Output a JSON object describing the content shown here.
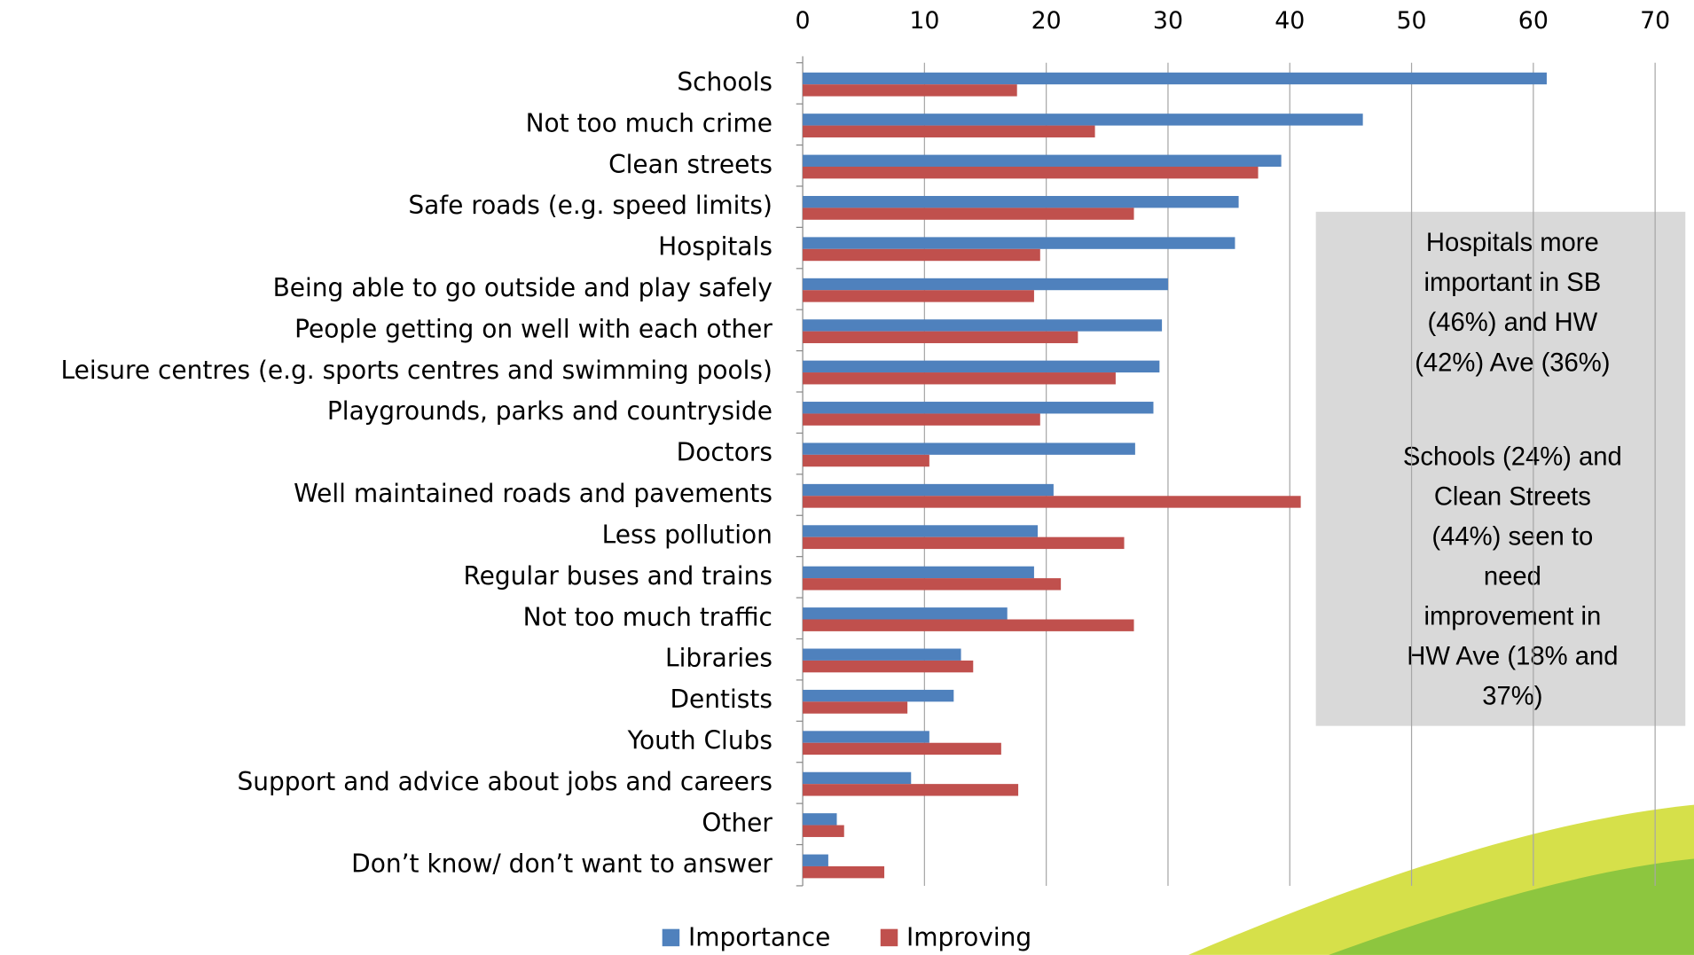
{
  "chart_data": {
    "type": "bar",
    "orientation": "horizontal",
    "categories": [
      "Schools",
      "Not too much crime",
      "Clean streets",
      "Safe roads (e.g. speed limits)",
      "Hospitals",
      "Being able to go outside and play safely",
      "People getting on well with each other",
      "Leisure centres (e.g. sports centres and swimming pools)",
      "Playgrounds, parks and countryside",
      "Doctors",
      "Well maintained roads and pavements",
      "Less pollution",
      "Regular buses and trains",
      "Not too much traffic",
      "Libraries",
      "Dentists",
      "Youth Clubs",
      "Support and advice about jobs and careers",
      "Other",
      "Don’t know/ don’t want to answer"
    ],
    "series": [
      {
        "name": "Importance",
        "color": "#4f81bd",
        "values": [
          61.1,
          46.0,
          39.3,
          35.8,
          35.5,
          30.0,
          29.5,
          29.3,
          28.8,
          27.3,
          20.6,
          19.3,
          19.0,
          16.8,
          13.0,
          12.4,
          10.4,
          8.9,
          2.8,
          2.1
        ]
      },
      {
        "name": "Improving",
        "color": "#c0504d",
        "values": [
          17.6,
          24.0,
          37.4,
          27.2,
          19.5,
          19.0,
          22.6,
          25.7,
          19.5,
          10.4,
          40.9,
          26.4,
          21.2,
          27.2,
          14.0,
          8.6,
          16.3,
          17.7,
          3.4,
          6.7
        ]
      }
    ],
    "xlim": [
      0,
      70
    ],
    "xticks": [
      0,
      10,
      20,
      30,
      40,
      50,
      60,
      70
    ],
    "grid": true,
    "legend": "bottom",
    "annotation": [
      [
        "Hospitals more",
        "important in SB",
        "(46%) and HW",
        "(42%) Ave (36%)"
      ],
      [
        "Schools (24%) and",
        "Clean Streets",
        "(44%) seen to",
        "need",
        "improvement in",
        "HW Ave (18% and",
        "37%)"
      ]
    ]
  }
}
